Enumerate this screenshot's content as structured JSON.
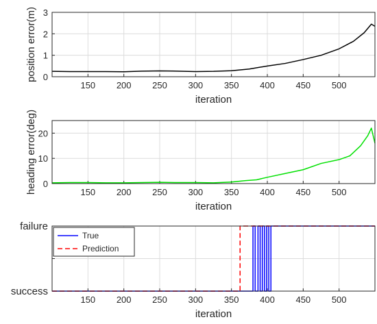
{
  "figure": {
    "background": "#ffffff"
  },
  "chart_data": [
    {
      "type": "line",
      "title": "",
      "xlabel": "iteration",
      "ylabel": "position error(m)",
      "xlim": [
        100,
        550
      ],
      "ylim": [
        0,
        3
      ],
      "xticks": [
        150,
        200,
        250,
        300,
        350,
        400,
        450,
        500
      ],
      "yticks": [
        0,
        1,
        2,
        3
      ],
      "grid": true,
      "series": [
        {
          "color": "#000000",
          "x": [
            100,
            125,
            150,
            175,
            200,
            225,
            250,
            275,
            300,
            325,
            350,
            375,
            400,
            425,
            450,
            475,
            500,
            520,
            535,
            545,
            550
          ],
          "values": [
            0.25,
            0.24,
            0.24,
            0.24,
            0.23,
            0.26,
            0.27,
            0.26,
            0.24,
            0.25,
            0.28,
            0.36,
            0.5,
            0.62,
            0.8,
            1.0,
            1.3,
            1.65,
            2.05,
            2.45,
            2.35
          ]
        }
      ]
    },
    {
      "type": "line",
      "title": "",
      "xlabel": "iteration",
      "ylabel": "heading error(deg)",
      "xlim": [
        100,
        550
      ],
      "ylim": [
        0,
        25
      ],
      "xticks": [
        150,
        200,
        250,
        300,
        350,
        400,
        450,
        500
      ],
      "yticks": [
        0,
        10,
        20
      ],
      "grid": true,
      "series": [
        {
          "color": "#00e000",
          "x": [
            100,
            125,
            150,
            175,
            200,
            225,
            250,
            275,
            300,
            325,
            350,
            370,
            385,
            400,
            425,
            450,
            475,
            500,
            515,
            530,
            540,
            545,
            550
          ],
          "values": [
            0.3,
            0.4,
            0.4,
            0.3,
            0.3,
            0.4,
            0.5,
            0.4,
            0.4,
            0.3,
            0.6,
            1.2,
            1.5,
            2.5,
            4.0,
            5.5,
            8.0,
            9.5,
            11.0,
            15.0,
            19.0,
            22.0,
            16.0
          ]
        }
      ]
    },
    {
      "type": "line",
      "title": "",
      "xlabel": "iteration",
      "ylabel": "",
      "xlim": [
        100,
        550
      ],
      "ylim": [
        0,
        1
      ],
      "xticks": [
        150,
        200,
        250,
        300,
        350,
        400,
        450,
        500
      ],
      "ytick_labels": [
        "success",
        "failure"
      ],
      "grid": true,
      "legend": "top-left",
      "series": [
        {
          "name": "True",
          "color": "#0000ff",
          "dash": "solid",
          "x": [
            100,
            380,
            380,
            383,
            383,
            387,
            387,
            390,
            390,
            393,
            393,
            396,
            396,
            399,
            399,
            402,
            402,
            405,
            405,
            550
          ],
          "values": [
            0,
            0,
            1,
            1,
            0,
            0,
            1,
            1,
            0,
            0,
            1,
            1,
            0,
            0,
            1,
            1,
            0,
            0,
            1,
            1
          ]
        },
        {
          "name": "Prediction",
          "color": "#ff0000",
          "dash": "dashed",
          "x": [
            100,
            362,
            362,
            550
          ],
          "values": [
            0,
            0,
            1,
            1
          ]
        }
      ]
    }
  ]
}
